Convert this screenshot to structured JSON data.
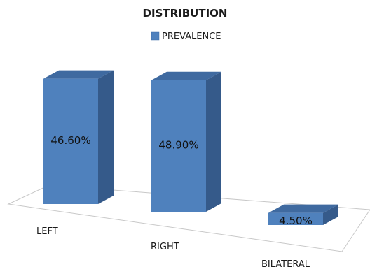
{
  "chart_data": {
    "type": "bar",
    "title": "DISTRIBUTION",
    "categories": [
      "LEFT",
      "RIGHT",
      "BILATERAL"
    ],
    "series": [
      {
        "name": "PREVALENCE",
        "values": [
          46.6,
          48.9,
          4.5
        ]
      }
    ],
    "data_labels": [
      "46.60%",
      "48.90%",
      "4.50%"
    ],
    "ylim": [
      0,
      50
    ],
    "legend_position": "top",
    "grid": false,
    "style": "3d-column",
    "colors": {
      "front": "#4f81bd",
      "side": "#355a8a",
      "top": "#3f6aa0",
      "floor_line": "#c8c8c8"
    }
  }
}
